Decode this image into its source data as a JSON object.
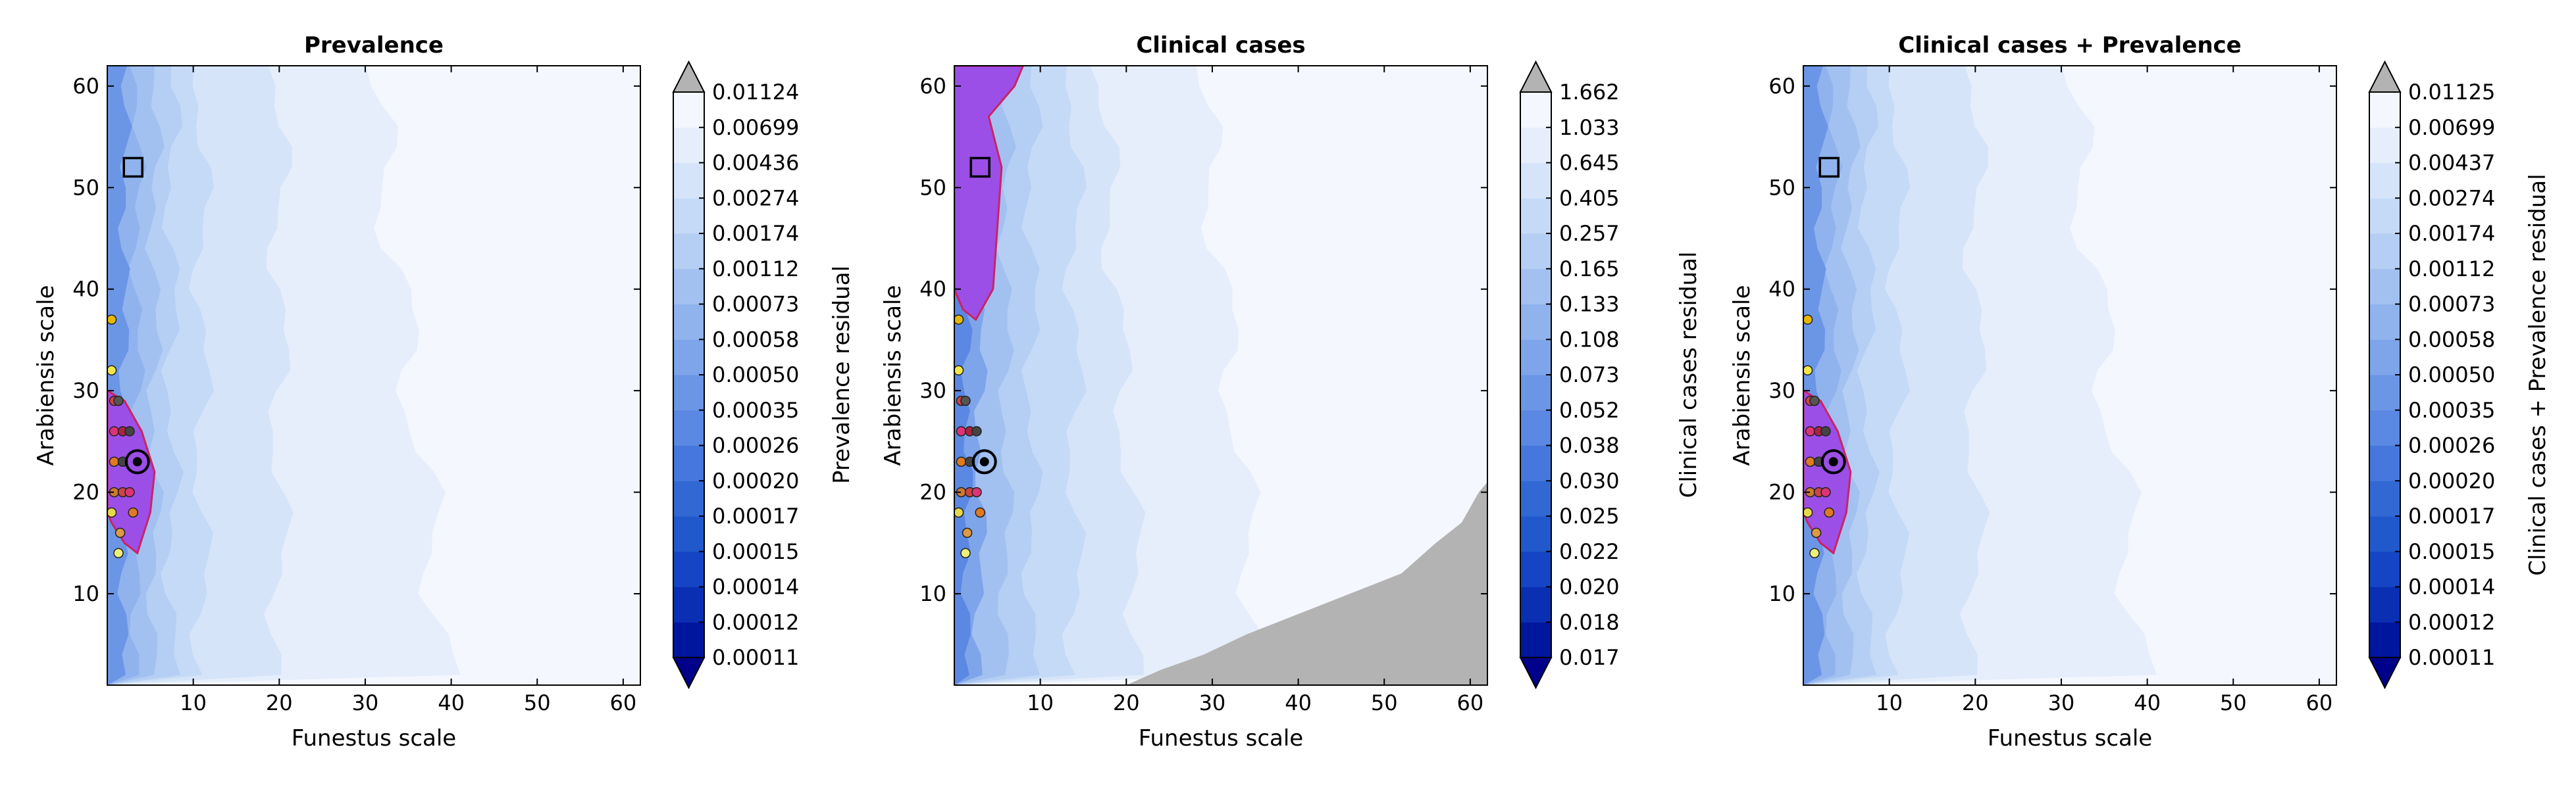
{
  "chart_data": [
    {
      "type": "contour",
      "title": "Prevalence",
      "xlabel": "Funestus scale",
      "ylabel": "Arabiensis scale",
      "xlim": [
        0,
        62
      ],
      "ylim": [
        1,
        62
      ],
      "xticks": [
        "10",
        "20",
        "30",
        "40",
        "50",
        "60"
      ],
      "yticks": [
        "10",
        "20",
        "30",
        "40",
        "50",
        "60"
      ],
      "colorbar_label": "Prevalence residual",
      "colorbar_levels": [
        "0.00011",
        "0.00012",
        "0.00014",
        "0.00015",
        "0.00017",
        "0.00020",
        "0.00026",
        "0.00035",
        "0.00050",
        "0.00058",
        "0.00073",
        "0.00112",
        "0.00174",
        "0.00274",
        "0.00436",
        "0.00699",
        "0.01124"
      ],
      "square_marker": [
        3,
        52
      ],
      "target_marker": [
        3.5,
        23
      ]
    },
    {
      "type": "contour",
      "title": "Clinical cases",
      "xlabel": "Funestus scale",
      "ylabel": "Arabiensis scale",
      "xlim": [
        0,
        62
      ],
      "ylim": [
        1,
        62
      ],
      "xticks": [
        "10",
        "20",
        "30",
        "40",
        "50",
        "60"
      ],
      "yticks": [
        "10",
        "20",
        "30",
        "40",
        "50",
        "60"
      ],
      "colorbar_label": "Clinical cases residual",
      "colorbar_levels": [
        "0.017",
        "0.018",
        "0.020",
        "0.022",
        "0.025",
        "0.030",
        "0.038",
        "0.052",
        "0.073",
        "0.108",
        "0.133",
        "0.165",
        "0.257",
        "0.405",
        "0.645",
        "1.033",
        "1.662"
      ],
      "square_marker": [
        3,
        52
      ],
      "target_marker": [
        3.5,
        23
      ]
    },
    {
      "type": "contour",
      "title": "Clinical cases + Prevalence",
      "xlabel": "Funestus scale",
      "ylabel": "Arabiensis scale",
      "xlim": [
        0,
        62
      ],
      "ylim": [
        1,
        62
      ],
      "xticks": [
        "10",
        "20",
        "30",
        "40",
        "50",
        "60"
      ],
      "yticks": [
        "10",
        "20",
        "30",
        "40",
        "50",
        "60"
      ],
      "colorbar_label": "Clinical cases + Prevalence residual",
      "colorbar_levels": [
        "0.00011",
        "0.00012",
        "0.00014",
        "0.00015",
        "0.00017",
        "0.00020",
        "0.00026",
        "0.00035",
        "0.00050",
        "0.00058",
        "0.00073",
        "0.00112",
        "0.00174",
        "0.00274",
        "0.00437",
        "0.00699",
        "0.01125"
      ],
      "square_marker": [
        3,
        52
      ],
      "target_marker": [
        3.5,
        23
      ]
    }
  ],
  "colors": {
    "purple_fill": "#9b4fe6",
    "purple_edge": "#cc2266",
    "grey_region": "#b3b3b3",
    "cmap": [
      "#00008b",
      "#00169d",
      "#0a2fb3",
      "#1545c4",
      "#2159cc",
      "#3168d4",
      "#4677dc",
      "#5a88e2",
      "#6b96e6",
      "#7ea5ea",
      "#90b3ee",
      "#a2c1f1",
      "#b4cef4",
      "#c5daf7",
      "#d5e4f9",
      "#e6eefc",
      "#f4f7fe"
    ]
  }
}
